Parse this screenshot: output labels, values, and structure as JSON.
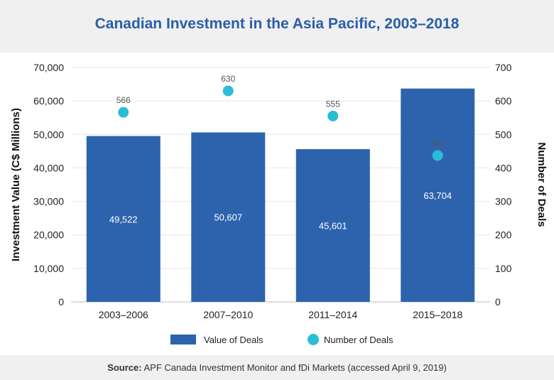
{
  "header": {
    "title": "Canadian Investment in the Asia Pacific, 2003–2018"
  },
  "footer": {
    "source_label": "Source:",
    "source_text": " APF Canada Investment Monitor and fDi Markets (accessed April 9, 2019)"
  },
  "chart_data": {
    "type": "bar",
    "categories": [
      "2003–2006",
      "2007–2010",
      "2011–2014",
      "2015–2018"
    ],
    "series": [
      {
        "name": "Value of Deals",
        "type": "bar",
        "axis": "left",
        "values": [
          49522,
          50607,
          45601,
          63704
        ],
        "value_labels": [
          "49,522",
          "50,607",
          "45,601",
          "63,704"
        ],
        "color": "#2d63ad"
      },
      {
        "name": "Number of Deals",
        "type": "scatter",
        "axis": "right",
        "values": [
          566,
          630,
          555,
          437
        ],
        "value_labels": [
          "566",
          "630",
          "555",
          "437"
        ],
        "color": "#2bbcd6"
      }
    ],
    "ylabel": "Investment Value (C$ Millions)",
    "y2label": "Number of Deals",
    "ylim": [
      0,
      70000
    ],
    "y2lim": [
      0,
      700
    ],
    "yticks": [
      "0",
      "10,000",
      "20,000",
      "30,000",
      "40,000",
      "50,000",
      "60,000",
      "70,000"
    ],
    "y2ticks": [
      "0",
      "100",
      "200",
      "300",
      "400",
      "500",
      "600",
      "700"
    ],
    "grid": true,
    "legend": "bottom"
  }
}
